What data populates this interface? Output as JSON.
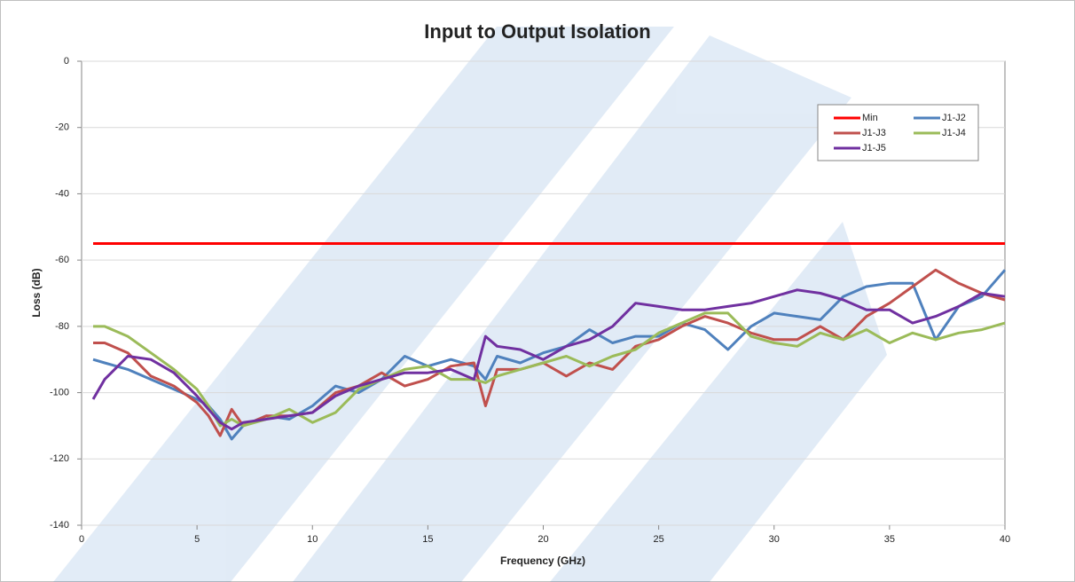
{
  "chart_data": {
    "type": "line",
    "title": "Input to Output Isolation",
    "x_label": "Frequency (GHz)",
    "y_label": "Loss (dB)",
    "xlim": [
      0,
      40
    ],
    "ylim": [
      -140,
      0
    ],
    "xticks": [
      0,
      5,
      10,
      15,
      20,
      25,
      30,
      35,
      40
    ],
    "yticks": [
      0,
      -20,
      -40,
      -60,
      -80,
      -100,
      -120,
      -140
    ],
    "grid": true,
    "legend": "upper-right",
    "x": [
      0.5,
      1,
      2,
      3,
      4,
      5,
      5.5,
      6,
      6.5,
      7,
      8,
      9,
      10,
      11,
      12,
      13,
      14,
      15,
      16,
      17,
      17.5,
      18,
      19,
      20,
      21,
      22,
      23,
      24,
      25,
      26,
      27,
      28,
      29,
      30,
      31,
      32,
      33,
      34,
      35,
      36,
      37,
      38,
      39,
      40
    ],
    "series": [
      {
        "name": "Min",
        "color": "#ff0000",
        "x": [
          0.5,
          40
        ],
        "values": [
          -55,
          -55
        ]
      },
      {
        "name": "J1-J2",
        "color": "#4f81bd",
        "values": [
          -90,
          -91,
          -93,
          -96,
          -99,
          -102,
          -104,
          -108,
          -114,
          -110,
          -107,
          -108,
          -104,
          -98,
          -100,
          -96,
          -89,
          -92,
          -90,
          -92,
          -96,
          -89,
          -91,
          -88,
          -86,
          -81,
          -85,
          -83,
          -83,
          -79,
          -81,
          -87,
          -80,
          -76,
          -77,
          -78,
          -71,
          -68,
          -67,
          -67,
          -84,
          -74,
          -71,
          -63
        ]
      },
      {
        "name": "J1-J3",
        "color": "#c0504d",
        "values": [
          -85,
          -85,
          -88,
          -95,
          -98,
          -103,
          -107,
          -113,
          -105,
          -110,
          -107,
          -107,
          -106,
          -100,
          -98,
          -94,
          -98,
          -96,
          -92,
          -91,
          -104,
          -93,
          -93,
          -91,
          -95,
          -91,
          -93,
          -86,
          -84,
          -80,
          -77,
          -79,
          -82,
          -84,
          -84,
          -80,
          -84,
          -77,
          -73,
          -68,
          -63,
          -67,
          -70,
          -72
        ]
      },
      {
        "name": "J1-J4",
        "color": "#9bbb59",
        "values": [
          -80,
          -80,
          -83,
          -88,
          -93,
          -99,
          -104,
          -110,
          -108,
          -110,
          -108,
          -105,
          -109,
          -106,
          -99,
          -96,
          -93,
          -92,
          -96,
          -96,
          -97,
          -95,
          -93,
          -91,
          -89,
          -92,
          -89,
          -87,
          -82,
          -79,
          -76,
          -76,
          -83,
          -85,
          -86,
          -82,
          -84,
          -81,
          -85,
          -82,
          -84,
          -82,
          -81,
          -79
        ]
      },
      {
        "name": "J1-J5",
        "color": "#7030a0",
        "values": [
          -102,
          -96,
          -89,
          -90,
          -94,
          -101,
          -105,
          -109,
          -111,
          -109,
          -108,
          -107,
          -106,
          -101,
          -98,
          -96,
          -94,
          -94,
          -93,
          -96,
          -83,
          -86,
          -87,
          -90,
          -86,
          -84,
          -80,
          -73,
          -74,
          -75,
          -75,
          -74,
          -73,
          -71,
          -69,
          -70,
          -72,
          -75,
          -75,
          -79,
          -77,
          -74,
          -70,
          -71
        ]
      }
    ]
  }
}
